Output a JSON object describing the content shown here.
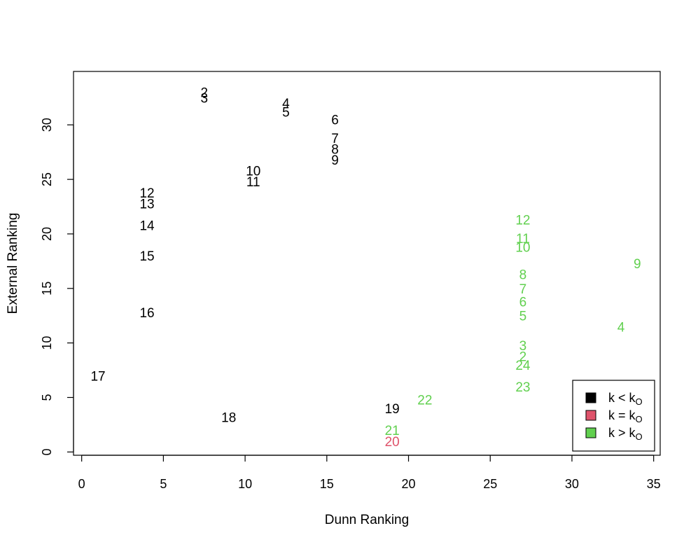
{
  "chart_data": {
    "type": "scatter",
    "title": "",
    "xlabel": "Dunn Ranking",
    "ylabel": "External Ranking",
    "xlim": [
      -0.5,
      35.4
    ],
    "ylim": [
      -0.3,
      34.9
    ],
    "xticks": [
      0,
      5,
      10,
      15,
      20,
      25,
      30,
      35
    ],
    "yticks": [
      0,
      5,
      10,
      15,
      20,
      25,
      30
    ],
    "colors": {
      "lt": "#000000",
      "eq": "#DF536B",
      "gt": "#61D04F"
    },
    "points": [
      {
        "x": 7.5,
        "y": 33.0,
        "label": "2",
        "group": "lt"
      },
      {
        "x": 7.5,
        "y": 32.5,
        "label": "3",
        "group": "lt"
      },
      {
        "x": 12.5,
        "y": 32.0,
        "label": "4",
        "group": "lt"
      },
      {
        "x": 12.5,
        "y": 31.2,
        "label": "5",
        "group": "lt"
      },
      {
        "x": 15.5,
        "y": 30.5,
        "label": "6",
        "group": "lt"
      },
      {
        "x": 15.5,
        "y": 28.8,
        "label": "7",
        "group": "lt"
      },
      {
        "x": 15.5,
        "y": 27.8,
        "label": "8",
        "group": "lt"
      },
      {
        "x": 15.5,
        "y": 26.8,
        "label": "9",
        "group": "lt"
      },
      {
        "x": 10.5,
        "y": 25.8,
        "label": "10",
        "group": "lt"
      },
      {
        "x": 10.5,
        "y": 24.8,
        "label": "11",
        "group": "lt"
      },
      {
        "x": 4.0,
        "y": 23.8,
        "label": "12",
        "group": "lt"
      },
      {
        "x": 4.0,
        "y": 22.8,
        "label": "13",
        "group": "lt"
      },
      {
        "x": 4.0,
        "y": 20.8,
        "label": "14",
        "group": "lt"
      },
      {
        "x": 4.0,
        "y": 18.0,
        "label": "15",
        "group": "lt"
      },
      {
        "x": 4.0,
        "y": 12.8,
        "label": "16",
        "group": "lt"
      },
      {
        "x": 1.0,
        "y": 7.0,
        "label": "17",
        "group": "lt"
      },
      {
        "x": 9.0,
        "y": 3.2,
        "label": "18",
        "group": "lt"
      },
      {
        "x": 19.0,
        "y": 4.0,
        "label": "19",
        "group": "lt"
      },
      {
        "x": 19.0,
        "y": 1.0,
        "label": "20",
        "group": "eq"
      },
      {
        "x": 19.0,
        "y": 2.0,
        "label": "21",
        "group": "gt"
      },
      {
        "x": 21.0,
        "y": 4.8,
        "label": "22",
        "group": "gt"
      },
      {
        "x": 27.0,
        "y": 6.0,
        "label": "23",
        "group": "gt"
      },
      {
        "x": 27.0,
        "y": 8.0,
        "label": "24",
        "group": "gt"
      },
      {
        "x": 27.0,
        "y": 8.8,
        "label": "2",
        "group": "gt"
      },
      {
        "x": 27.0,
        "y": 9.8,
        "label": "3",
        "group": "gt"
      },
      {
        "x": 33.0,
        "y": 11.5,
        "label": "4",
        "group": "gt"
      },
      {
        "x": 27.0,
        "y": 12.5,
        "label": "5",
        "group": "gt"
      },
      {
        "x": 27.0,
        "y": 13.8,
        "label": "6",
        "group": "gt"
      },
      {
        "x": 27.0,
        "y": 15.0,
        "label": "7",
        "group": "gt"
      },
      {
        "x": 27.0,
        "y": 16.3,
        "label": "8",
        "group": "gt"
      },
      {
        "x": 34.0,
        "y": 17.3,
        "label": "9",
        "group": "gt"
      },
      {
        "x": 27.0,
        "y": 18.8,
        "label": "10",
        "group": "gt"
      },
      {
        "x": 27.0,
        "y": 19.6,
        "label": "11",
        "group": "gt"
      },
      {
        "x": 27.0,
        "y": 21.3,
        "label": "12",
        "group": "gt"
      }
    ],
    "legend": {
      "position": "bottom-right",
      "entries": [
        {
          "group": "lt",
          "text": "k < k",
          "sub": "O"
        },
        {
          "group": "eq",
          "text": "k = k",
          "sub": "O"
        },
        {
          "group": "gt",
          "text": "k > k",
          "sub": "O"
        }
      ]
    }
  }
}
